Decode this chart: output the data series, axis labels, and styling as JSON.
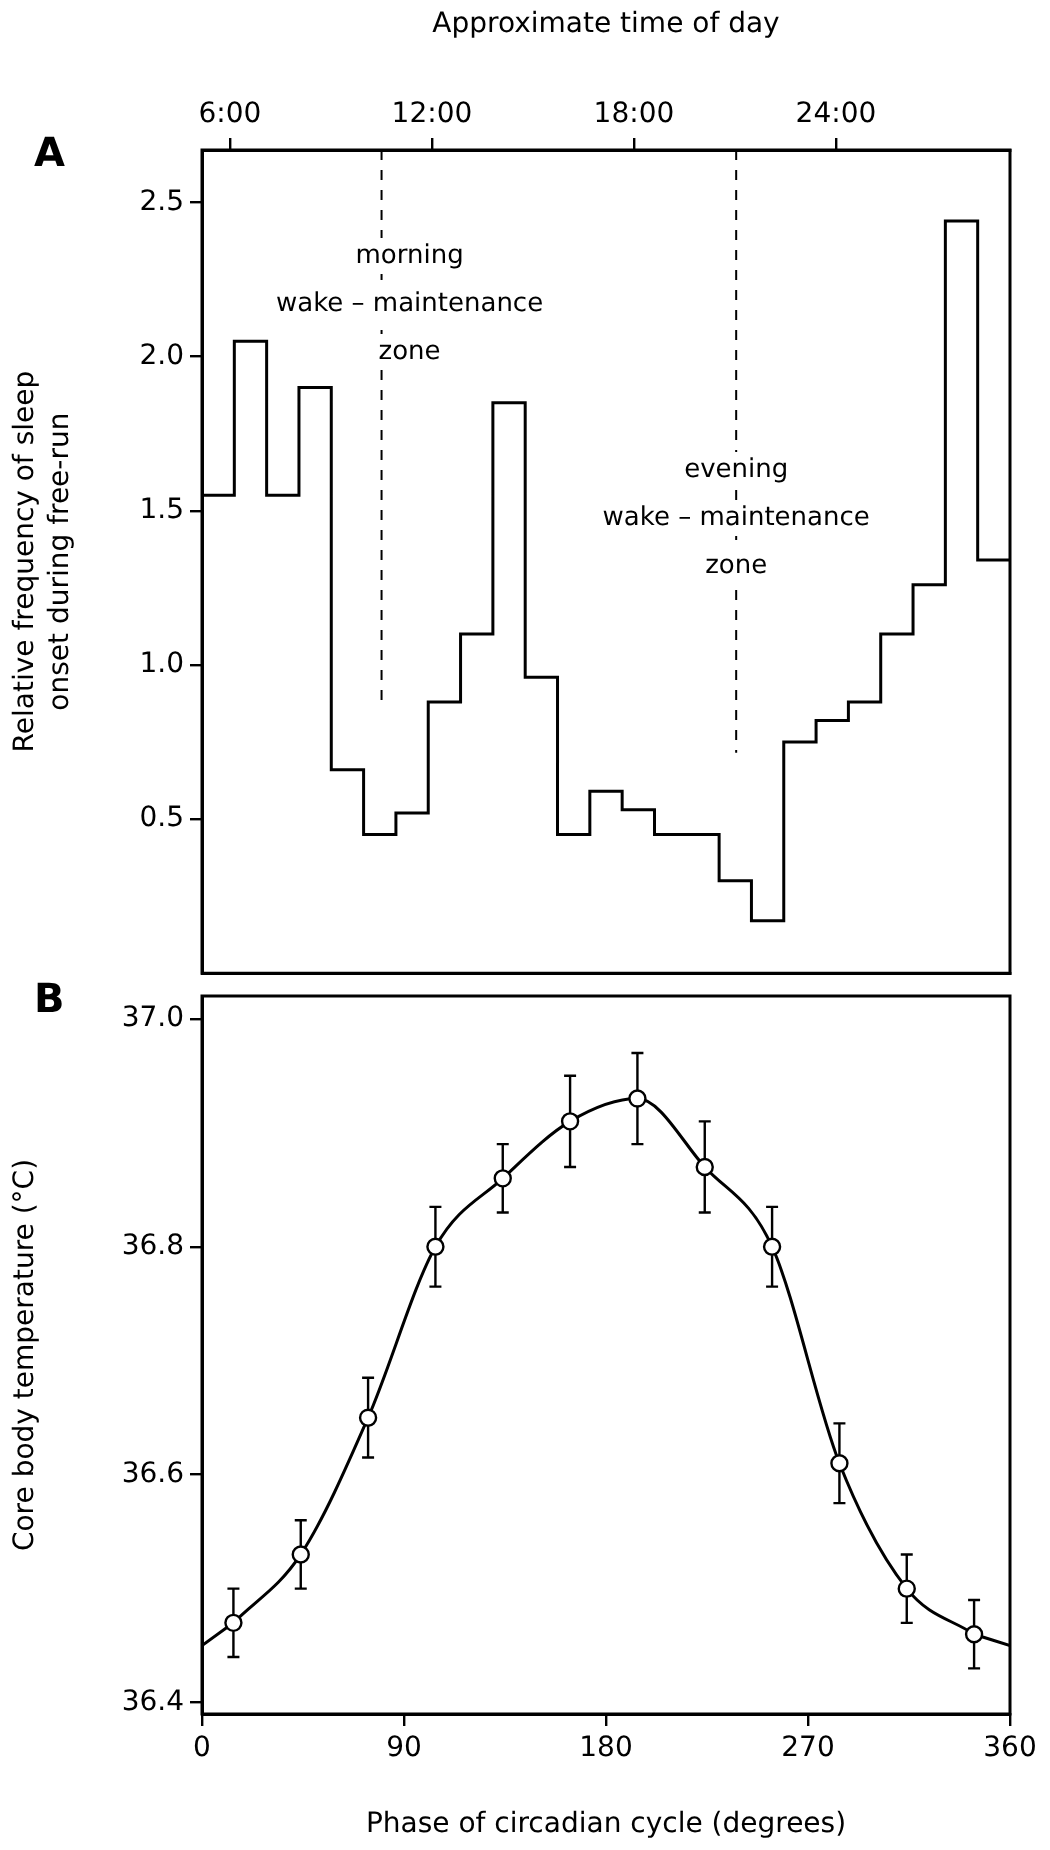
{
  "chart_data": [
    {
      "type": "histogram",
      "title": "A",
      "ylabel": "Relative frequency of sleep\nonset during free-run",
      "x2label": "Approximate time of day",
      "color": "#000000",
      "bins": [
        0,
        14.4,
        28.8,
        43.2,
        57.6,
        72,
        86.4,
        100.8,
        115.2,
        129.6,
        144,
        158.4,
        172.8,
        187.2,
        201.6,
        216,
        230.4,
        244.8,
        259.2,
        273.6,
        288,
        302.4,
        316.8,
        331.2,
        345.6,
        360
      ],
      "values": [
        1.55,
        2.05,
        1.55,
        1.9,
        0.66,
        0.45,
        0.52,
        0.88,
        1.1,
        1.85,
        0.96,
        0.45,
        0.59,
        0.53,
        0.45,
        0.45,
        0.3,
        0.17,
        0.75,
        0.82,
        0.88,
        1.1,
        1.26,
        2.44,
        1.34
      ],
      "xlim": [
        0,
        360
      ],
      "xticks": [
        0,
        90,
        180,
        270,
        360
      ],
      "ylim": [
        0,
        2.67
      ],
      "yticks": [
        {
          "value": 0.5,
          "label": "0.5"
        },
        {
          "value": 1,
          "label": "1.0"
        },
        {
          "value": 1.5,
          "label": "1.5"
        },
        {
          "value": 2,
          "label": "2.0"
        },
        {
          "value": 2.5,
          "label": "2.5"
        }
      ],
      "x2lim": [
        5.17,
        29.17
      ],
      "x2ticks": [
        {
          "value": 6,
          "label": "6:00"
        },
        {
          "value": 12,
          "label": "12:00"
        },
        {
          "value": 18,
          "label": "18:00"
        },
        {
          "value": 24,
          "label": "24:00"
        }
      ],
      "tick_labels": "y",
      "grid": false,
      "ref_lines": [
        {
          "axis": "x",
          "value": 80,
          "label": "morning\nwake – maintenance\nzone",
          "line_style": "dashed",
          "color": "#000000"
        },
        {
          "axis": "x",
          "value": 238,
          "label": "evening\nwake – maintenance\nzone",
          "line_style": "dashed",
          "color": "#000000"
        }
      ]
    },
    {
      "type": "line",
      "title": "B",
      "xlabel": "Phase of circadian cycle (degrees)",
      "ylabel": "Core body temperature (°C)",
      "xlim": [
        0,
        360
      ],
      "xticks": [
        0,
        90,
        180,
        270,
        360
      ],
      "ylim": [
        36.39,
        37.02
      ],
      "yticks": [
        {
          "value": 36.4,
          "label": "36.4"
        },
        36.6,
        36.8,
        {
          "value": 37,
          "label": "37.0"
        }
      ],
      "grid": false,
      "series": [
        {
          "color": "#000000",
          "marker": "circle",
          "x": [
            14,
            44,
            74,
            104,
            134,
            164,
            194,
            224,
            254,
            284,
            314,
            344
          ],
          "values": [
            36.47,
            36.53,
            36.65,
            36.8,
            36.86,
            36.91,
            36.93,
            36.87,
            36.8,
            36.61,
            36.5,
            36.46
          ],
          "errors": [
            0.03,
            0.03,
            0.035,
            0.035,
            0.03,
            0.04,
            0.04,
            0.04,
            0.035,
            0.035,
            0.03,
            0.03
          ]
        },
        {
          "color": "#000000",
          "marker": "none",
          "x": [
            0,
            14,
            180,
            344,
            360
          ],
          "values": [
            36.45,
            36.47,
            null,
            36.46,
            36.45
          ]
        }
      ]
    }
  ]
}
